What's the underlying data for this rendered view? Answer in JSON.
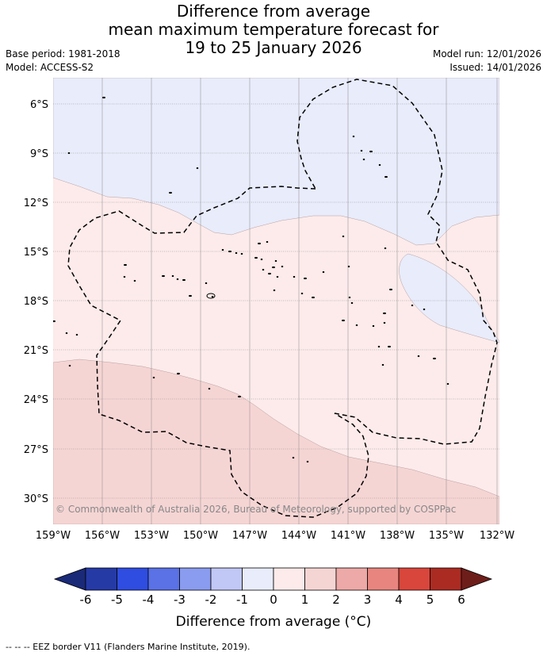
{
  "title": {
    "line1": "Difference from average",
    "line2": "mean maximum temperature forecast for",
    "line3": "19 to 25 January 2026"
  },
  "meta": {
    "base_period": "Base period: 1981-2018",
    "model": "Model: ACCESS-S2",
    "model_run": "Model run: 12/01/2026",
    "issued": "Issued: 14/01/2026"
  },
  "map": {
    "lon_labels": [
      "159°W",
      "156°W",
      "153°W",
      "150°W",
      "147°W",
      "144°W",
      "141°W",
      "138°W",
      "135°W",
      "132°W"
    ],
    "lat_labels": [
      "6°S",
      "9°S",
      "12°S",
      "15°S",
      "18°S",
      "21°S",
      "24°S",
      "27°S",
      "30°S"
    ],
    "copyright": "© Commonwealth of Australia 2026, Bureau of Meteorology, supported by COSPPac",
    "colors": {
      "band_m1": "#e8ecfb",
      "band_p1": "#fcebea",
      "band_p2": "#f5d5d4",
      "grid": "#888888"
    }
  },
  "colorbar": {
    "labels": [
      "-6",
      "-5",
      "-4",
      "-3",
      "-2",
      "-1",
      "0",
      "1",
      "2",
      "3",
      "4",
      "5",
      "6"
    ],
    "colors": [
      "#263aa6",
      "#2f4de0",
      "#5a72e6",
      "#8a9cef",
      "#c1c8f6",
      "#e8ecfb",
      "#fcebea",
      "#f5d5d4",
      "#eda9a7",
      "#e8857f",
      "#d9463c",
      "#ab2b22"
    ],
    "under_color": "#1a2a78",
    "over_color": "#6e1e1a",
    "title": "Difference from average (°C)"
  },
  "footer": "-- -- -- EEZ border V11 (Flanders Marine Institute, 2019)."
}
